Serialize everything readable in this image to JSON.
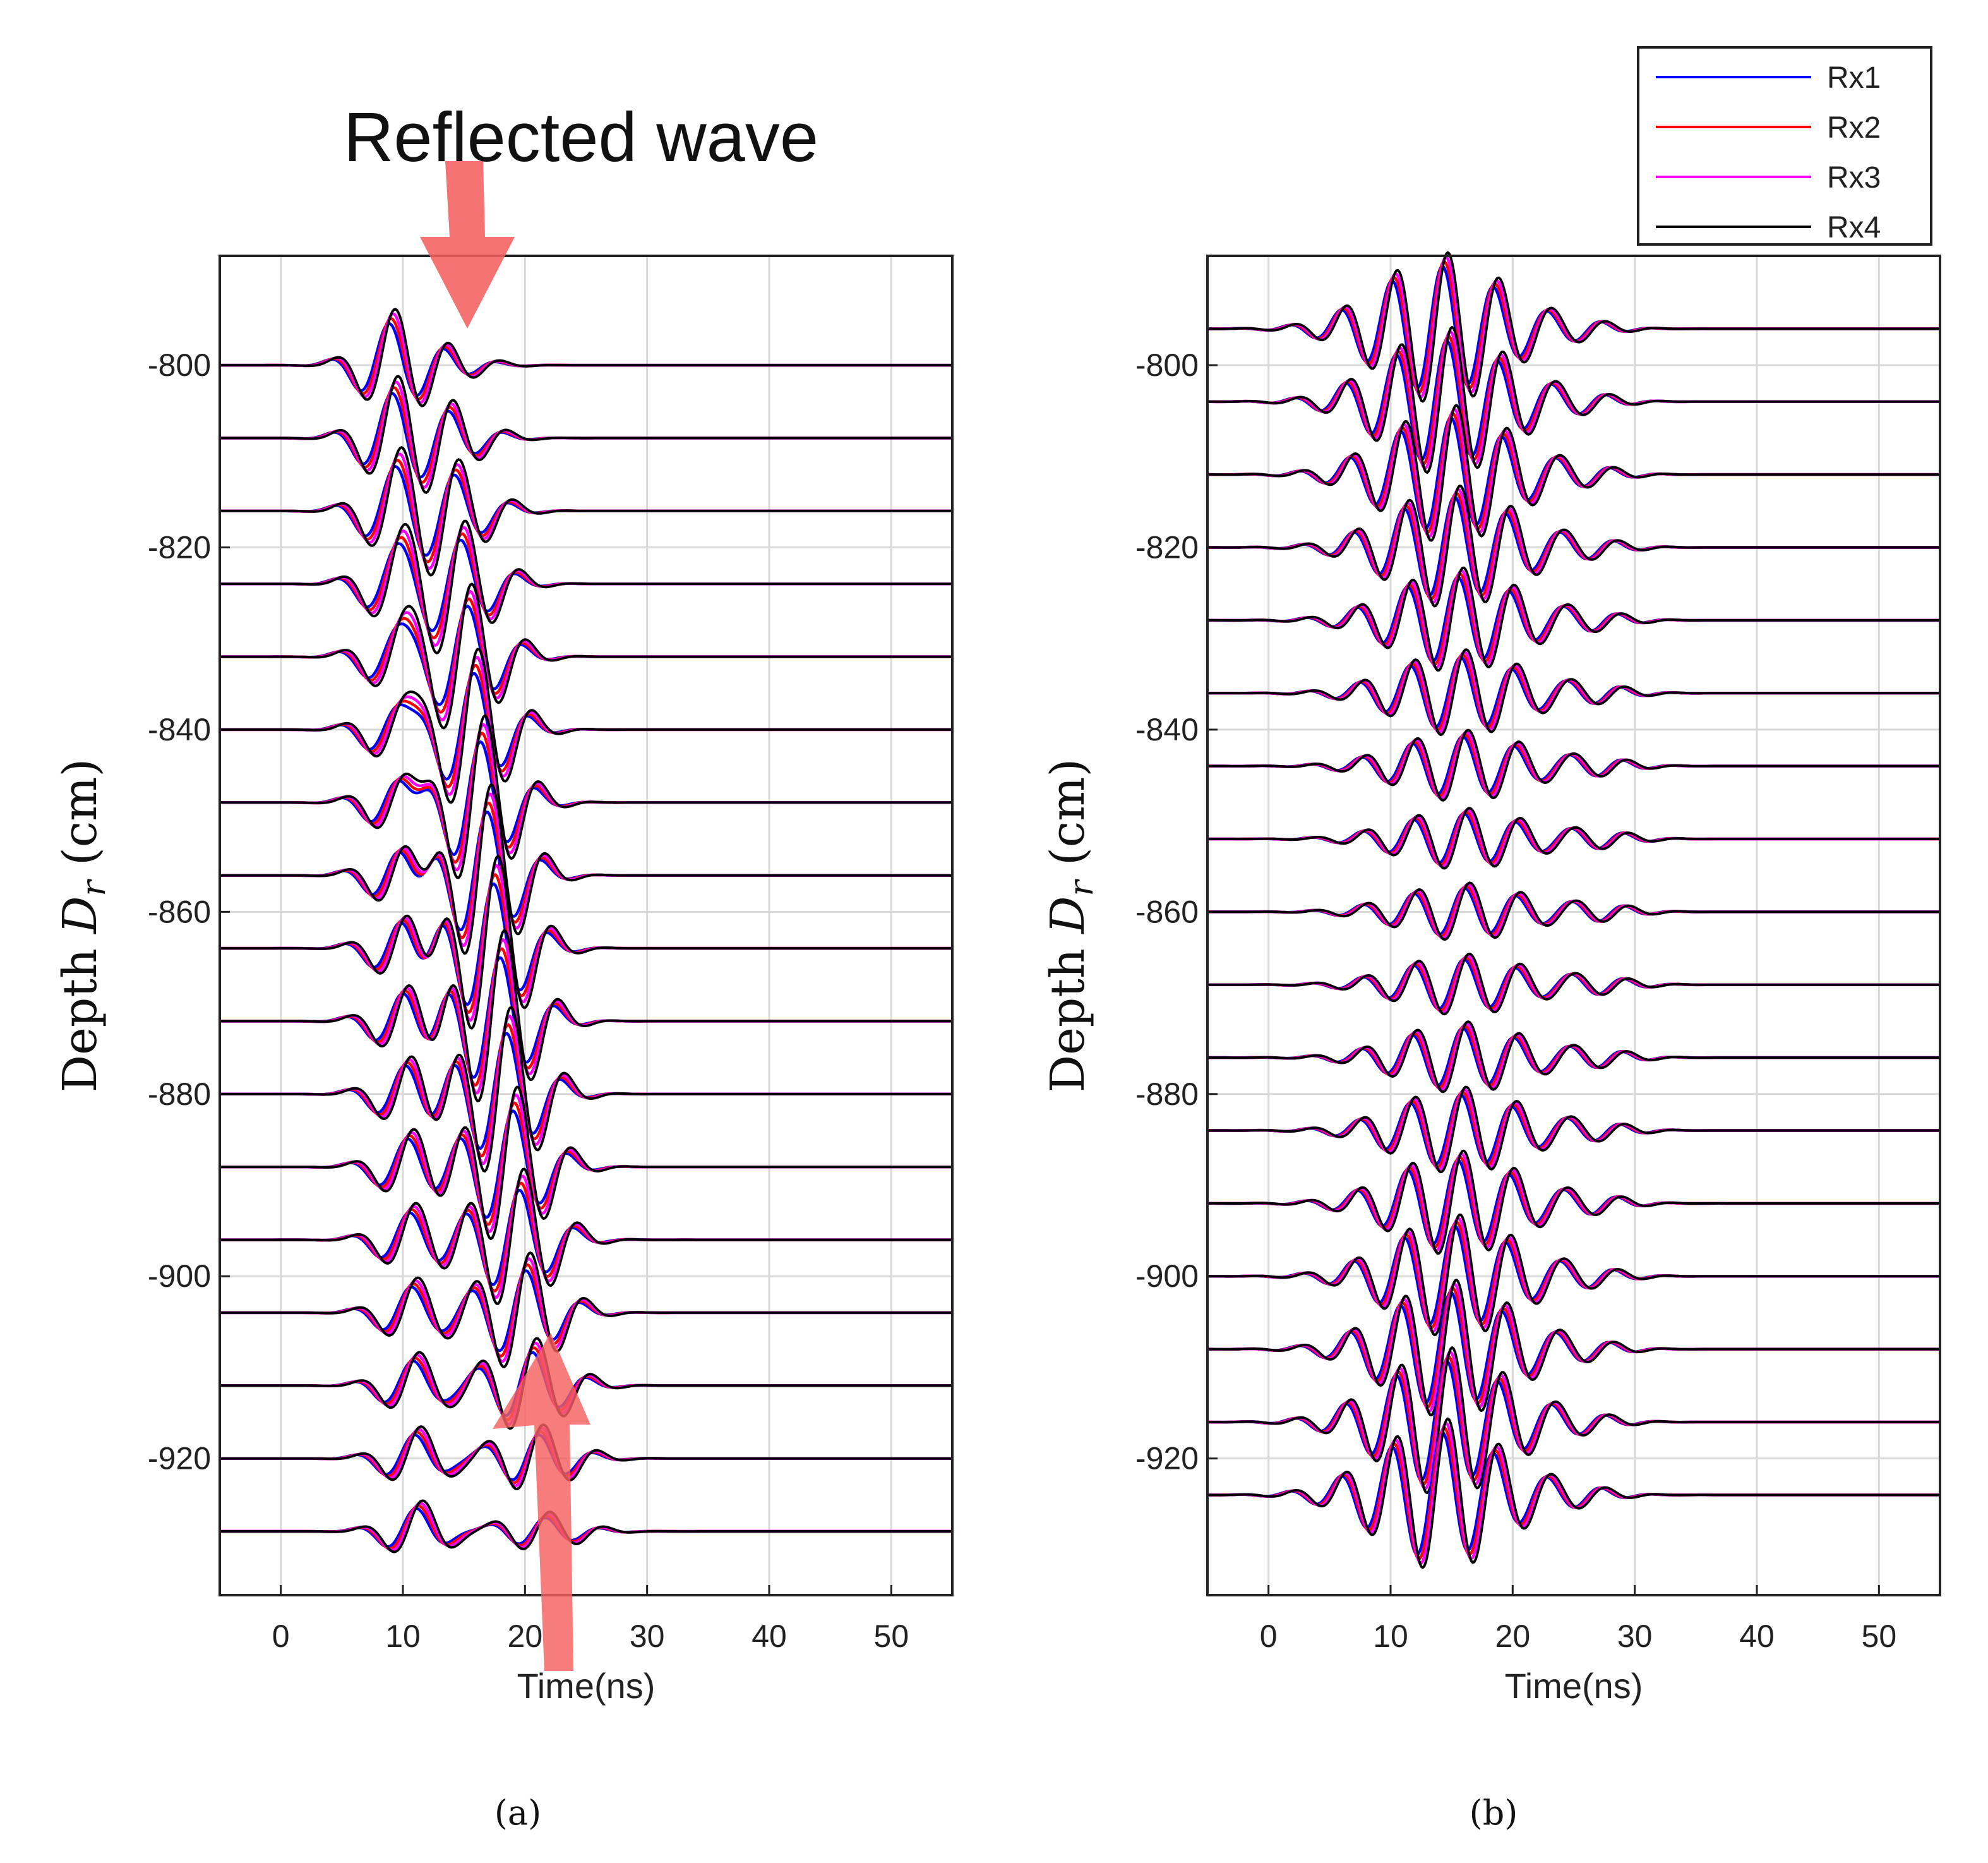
{
  "chart_data": [
    {
      "panel": "a",
      "type": "line",
      "caption": "(a)",
      "xlabel": "Time(ns)",
      "ylabel_text": "Depth ",
      "ylabel_symbol": "D",
      "ylabel_subscript": "r",
      "ylabel_unit": " (cm)",
      "xlim": [
        -5,
        55
      ],
      "ylim": [
        -935,
        -788
      ],
      "xticks": [
        "0",
        "10",
        "20",
        "30",
        "40",
        "50"
      ],
      "yticks": [
        "-800",
        "-820",
        "-840",
        "-860",
        "-880",
        "-900",
        "-920"
      ],
      "grid": true,
      "annotation": "Reflected wave",
      "series_names": [
        "Rx1",
        "Rx2",
        "Rx3",
        "Rx4"
      ],
      "traces_baseline_depths": [
        -800,
        -808,
        -816,
        -824,
        -832,
        -840,
        -848,
        -856,
        -864,
        -872,
        -880,
        -888,
        -896,
        -904,
        -912,
        -920,
        -928
      ]
    },
    {
      "panel": "b",
      "type": "line",
      "caption": "(b)",
      "xlabel": "Time(ns)",
      "ylabel_text": "Depth ",
      "ylabel_symbol": "D",
      "ylabel_subscript": "r",
      "ylabel_unit": " (cm)",
      "xlim": [
        -5,
        55
      ],
      "ylim": [
        -935,
        -788
      ],
      "xticks": [
        "0",
        "10",
        "20",
        "30",
        "40",
        "50"
      ],
      "yticks": [
        "-800",
        "-820",
        "-840",
        "-860",
        "-880",
        "-900",
        "-920"
      ],
      "grid": true,
      "series_names": [
        "Rx1",
        "Rx2",
        "Rx3",
        "Rx4"
      ],
      "traces_baseline_depths": [
        -796,
        -804,
        -812,
        -820,
        -828,
        -836,
        -844,
        -852,
        -860,
        -868,
        -876,
        -884,
        -892,
        -900,
        -908,
        -916,
        -924
      ]
    }
  ],
  "legend": {
    "placement": "top-right",
    "entries": [
      {
        "label": "Rx1",
        "color": "#0000ff"
      },
      {
        "label": "Rx2",
        "color": "#ff0000"
      },
      {
        "label": "Rx3",
        "color": "#ff00ff"
      },
      {
        "label": "Rx4",
        "color": "#000000"
      }
    ]
  },
  "colors": {
    "arrow": "#f4605f",
    "grid": "#d9d9d9",
    "axis": "#222222"
  }
}
